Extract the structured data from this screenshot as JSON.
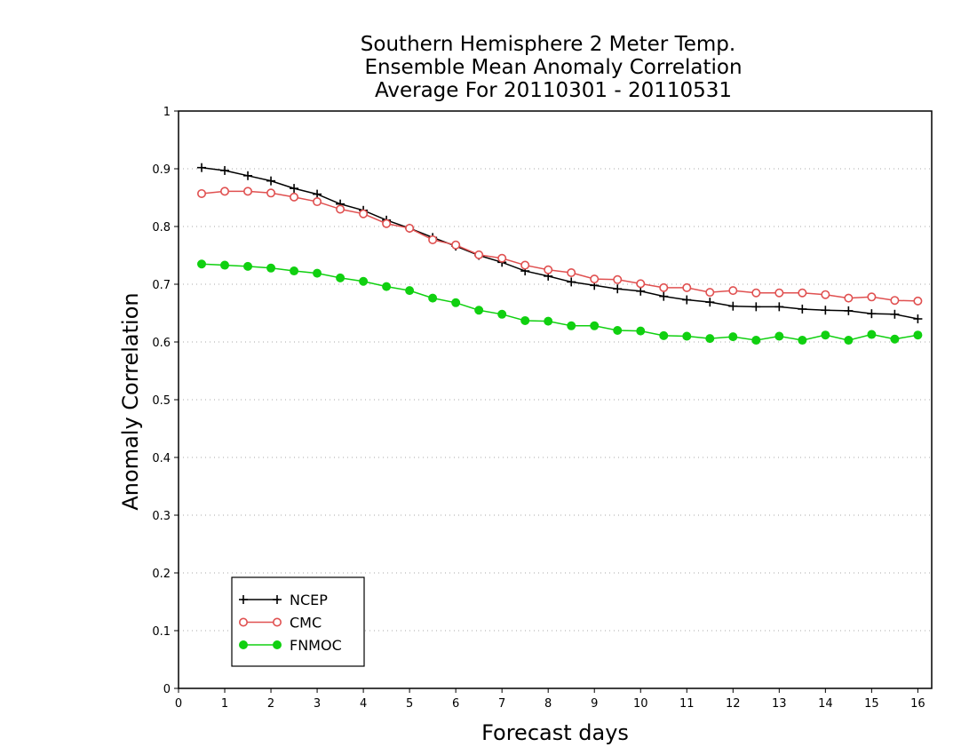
{
  "chart_data": {
    "type": "line",
    "title_lines": [
      "Southern Hemisphere 2 Meter Temp.",
      "Ensemble Mean Anomaly Correlation",
      "Average For 20110301 - 20110531"
    ],
    "xlabel": "Forecast days",
    "ylabel": "Anomaly Correlation",
    "xlim": [
      0,
      16.3
    ],
    "ylim": [
      0,
      1
    ],
    "xticks": [
      "0",
      "1",
      "2",
      "3",
      "4",
      "5",
      "6",
      "7",
      "8",
      "9",
      "10",
      "11",
      "12",
      "13",
      "14",
      "15",
      "16"
    ],
    "yticks": [
      "0",
      "0.1",
      "0.2",
      "0.3",
      "0.4",
      "0.5",
      "0.6",
      "0.7",
      "0.8",
      "0.9",
      "1"
    ],
    "grid": true,
    "legend_position": "bottom-left",
    "x": [
      0.5,
      1,
      1.5,
      2,
      2.5,
      3,
      3.5,
      4,
      4.5,
      5,
      5.5,
      6,
      6.5,
      7,
      7.5,
      8,
      8.5,
      9,
      9.5,
      10,
      10.5,
      11,
      11.5,
      12,
      12.5,
      13,
      13.5,
      14,
      14.5,
      15,
      15.5,
      16
    ],
    "series": [
      {
        "name": "NCEP",
        "color": "#000000",
        "marker": "plus",
        "values": [
          0.902,
          0.897,
          0.888,
          0.879,
          0.866,
          0.856,
          0.839,
          0.828,
          0.811,
          0.797,
          0.781,
          0.766,
          0.75,
          0.738,
          0.723,
          0.714,
          0.704,
          0.698,
          0.692,
          0.688,
          0.679,
          0.673,
          0.669,
          0.662,
          0.661,
          0.661,
          0.657,
          0.655,
          0.654,
          0.649,
          0.648,
          0.64
        ]
      },
      {
        "name": "CMC",
        "color": "#e05050",
        "marker": "open-circle",
        "values": [
          0.857,
          0.861,
          0.861,
          0.858,
          0.851,
          0.843,
          0.83,
          0.822,
          0.805,
          0.797,
          0.777,
          0.768,
          0.751,
          0.745,
          0.733,
          0.725,
          0.72,
          0.709,
          0.708,
          0.701,
          0.694,
          0.694,
          0.686,
          0.689,
          0.685,
          0.685,
          0.685,
          0.682,
          0.676,
          0.678,
          0.672,
          0.671
        ]
      },
      {
        "name": "FNMOC",
        "color": "#10d010",
        "marker": "filled-circle",
        "values": [
          0.735,
          0.733,
          0.731,
          0.728,
          0.723,
          0.719,
          0.711,
          0.705,
          0.696,
          0.689,
          0.676,
          0.668,
          0.655,
          0.648,
          0.637,
          0.636,
          0.628,
          0.628,
          0.62,
          0.619,
          0.611,
          0.61,
          0.606,
          0.609,
          0.603,
          0.61,
          0.603,
          0.612,
          0.603,
          0.613,
          0.605,
          0.612
        ]
      }
    ]
  }
}
